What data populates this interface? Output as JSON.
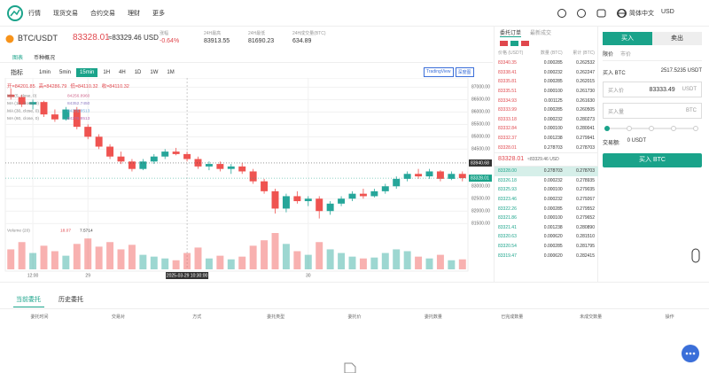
{
  "nav": {
    "items": [
      "行情",
      "现货交易",
      "合约交易",
      "理财",
      "更多"
    ],
    "language": "简体中文",
    "currency": "USD"
  },
  "ticker": {
    "pair": "BTC/USDT",
    "price": "83328.01",
    "price_usd": "≈83329.46 USD",
    "stats": [
      {
        "label": "涨幅",
        "value": "-0.64%"
      },
      {
        "label": "24H最高",
        "value": "83913.55"
      },
      {
        "label": "24H最低",
        "value": "81690.23"
      },
      {
        "label": "24H成交量(BTC)",
        "value": "634.89"
      }
    ]
  },
  "chart_tabs": [
    "图表",
    "币种概况"
  ],
  "indicator_button": "指标",
  "intervals": [
    "1min",
    "5min",
    "15min",
    "1H",
    "4H",
    "1D",
    "1W",
    "1M"
  ],
  "active_interval": 2,
  "view_buttons": [
    "TradingView",
    "深度图"
  ],
  "chart_data": {
    "type": "candlestick",
    "ohlc_legend": [
      "开=84201.85",
      "高=84286.79",
      "低=84110.32",
      "收=84110.32"
    ],
    "ma_legend": [
      {
        "name": "MA (5, close, 0)",
        "value": "84256.8960",
        "color": "#d0698e"
      },
      {
        "name": "MA (10, close, 0)",
        "value": "84352.7450",
        "color": "#8e7cc3"
      },
      {
        "name": "MA (30, close, 0)",
        "value": "84375.8513",
        "color": "#6fa8dc"
      },
      {
        "name": "MA (60, close, 0)",
        "value": "84276.8513",
        "color": "#b46ab4"
      }
    ],
    "volume_legend": [
      "Volume (20)",
      "18.07",
      "7.5714"
    ],
    "categories": [
      null,
      null,
      "12:00",
      null,
      null,
      null,
      null,
      "29",
      null,
      null,
      null,
      null,
      null,
      null,
      null,
      null,
      null,
      null,
      null,
      null,
      null,
      null,
      null,
      null,
      null,
      null,
      null,
      "30",
      null,
      null,
      null,
      null,
      null,
      null,
      null,
      null,
      null,
      null,
      null,
      null,
      null,
      null
    ],
    "candles": [
      [
        86700,
        86950,
        86500,
        86600
      ],
      [
        86600,
        86700,
        86200,
        86300
      ],
      [
        86300,
        86500,
        86100,
        86400
      ],
      [
        86400,
        86450,
        85800,
        85900
      ],
      [
        85900,
        86100,
        85600,
        85700
      ],
      [
        85700,
        86200,
        85650,
        86100
      ],
      [
        86100,
        86200,
        85300,
        85400
      ],
      [
        85400,
        85500,
        84900,
        85000
      ],
      [
        85000,
        85100,
        84500,
        84600
      ],
      [
        84600,
        84700,
        84100,
        84200
      ],
      [
        84200,
        84400,
        83900,
        84000
      ],
      [
        84000,
        84100,
        83600,
        83700
      ],
      [
        83700,
        84100,
        83650,
        84000
      ],
      [
        84000,
        84300,
        83900,
        84200
      ],
      [
        84200,
        84500,
        84100,
        84400
      ],
      [
        84400,
        84550,
        84250,
        84300
      ],
      [
        84300,
        84400,
        84000,
        84100
      ],
      [
        84100,
        84200,
        83700,
        83800
      ],
      [
        83800,
        84000,
        83650,
        83900
      ],
      [
        83900,
        84000,
        83600,
        83700
      ],
      [
        83700,
        83900,
        83500,
        83800
      ],
      [
        83800,
        83950,
        83500,
        83600
      ],
      [
        83600,
        83700,
        83100,
        83200
      ],
      [
        83200,
        83300,
        82700,
        82800
      ],
      [
        82800,
        82900,
        81900,
        82100
      ],
      [
        82100,
        82700,
        81950,
        82600
      ],
      [
        82600,
        82800,
        82300,
        82400
      ],
      [
        82400,
        82600,
        82200,
        82500
      ],
      [
        82500,
        82600,
        81700,
        82000
      ],
      [
        82000,
        82400,
        81850,
        82300
      ],
      [
        82300,
        82600,
        82200,
        82500
      ],
      [
        82500,
        82800,
        82400,
        82700
      ],
      [
        82700,
        82900,
        82500,
        82600
      ],
      [
        82600,
        82900,
        82550,
        82800
      ],
      [
        82800,
        83100,
        82700,
        83000
      ],
      [
        83000,
        83400,
        82900,
        83300
      ],
      [
        83300,
        83600,
        83200,
        83500
      ],
      [
        83500,
        83700,
        83300,
        83400
      ],
      [
        83400,
        83700,
        83300,
        83600
      ],
      [
        83600,
        83650,
        83200,
        83300
      ],
      [
        83300,
        83600,
        83250,
        83500
      ],
      [
        83500,
        83600,
        83200,
        83328.01
      ]
    ],
    "volumes": [
      22,
      30,
      18,
      26,
      20,
      15,
      28,
      34,
      25,
      30,
      22,
      27,
      16,
      14,
      12,
      10,
      18,
      24,
      12,
      15,
      11,
      14,
      26,
      32,
      40,
      28,
      20,
      16,
      30,
      22,
      18,
      14,
      12,
      13,
      18,
      22,
      20,
      14,
      12,
      16,
      10,
      11
    ],
    "ylim": [
      81400,
      87300
    ],
    "yticks": [
      {
        "value": 87000,
        "label": "87000.00"
      },
      {
        "value": 86500,
        "label": "86500.00"
      },
      {
        "value": 86000,
        "label": "86000.00"
      },
      {
        "value": 85500,
        "label": "85500.00"
      },
      {
        "value": 85000,
        "label": "85000.00"
      },
      {
        "value": 84500,
        "label": "84500.00"
      },
      {
        "value": 83000,
        "label": "83000.00"
      },
      {
        "value": 82500,
        "label": "82500.00"
      },
      {
        "value": 82000,
        "label": "82000.00"
      },
      {
        "value": 81500,
        "label": "81500.00"
      }
    ],
    "price_markers": [
      {
        "value": 83940.68,
        "label": "83940.68",
        "color": "#333333"
      },
      {
        "value": 83328.01,
        "label": "83328.01",
        "color": "#1aa38a"
      }
    ],
    "crosshair": {
      "category": 16,
      "label": "2025-03-29 10:30:00"
    },
    "grid": true,
    "up_color": "#26a69a",
    "down_color": "#ef5350"
  },
  "order_book": {
    "tabs": [
      "委托订单",
      "最新成交"
    ],
    "columns": [
      "价格 (USDT)",
      "数量 (BTC)",
      "累计 (BTC)"
    ],
    "asks": [
      [
        "83340.35",
        "0.000285",
        "0.262532"
      ],
      [
        "83338.41",
        "0.000232",
        "0.262247"
      ],
      [
        "83335.81",
        "0.000285",
        "0.262015"
      ],
      [
        "83335.51",
        "0.000100",
        "0.261730"
      ],
      [
        "83334.93",
        "0.001125",
        "0.261630"
      ],
      [
        "83333.99",
        "0.000285",
        "0.260505"
      ],
      [
        "83333.18",
        "0.000232",
        "0.280273"
      ],
      [
        "83332.84",
        "0.000100",
        "0.280041"
      ],
      [
        "83332.37",
        "0.001238",
        "0.279941"
      ],
      [
        "83328.01",
        "0.278703",
        "0.278703"
      ]
    ],
    "mid_price": "83328.01",
    "mid_usd": "≈83329.46 USD",
    "bids": [
      [
        "83328.00",
        "0.278703",
        "0.278703"
      ],
      [
        "83326.18",
        "0.000232",
        "0.278935"
      ],
      [
        "83325.93",
        "0.000100",
        "0.279035"
      ],
      [
        "83323.46",
        "0.000232",
        "0.279267"
      ],
      [
        "83322.26",
        "0.000285",
        "0.279552"
      ],
      [
        "83321.86",
        "0.000100",
        "0.279652"
      ],
      [
        "83321.41",
        "0.001238",
        "0.280890"
      ],
      [
        "83320.63",
        "0.000620",
        "0.281510"
      ],
      [
        "83320.54",
        "0.000285",
        "0.281795"
      ],
      [
        "83319.47",
        "0.000620",
        "0.282415"
      ]
    ]
  },
  "trade": {
    "tabs": [
      "买入",
      "卖出"
    ],
    "order_types": [
      "限价",
      "市价"
    ],
    "available_label": "买入 BTC",
    "available": "2517.5235 USDT",
    "price_label": "买入价",
    "price": "83333.49",
    "price_unit": "USDT",
    "amount_label": "买入量",
    "amount_unit": "BTC",
    "total_label": "交易额:",
    "total": "0 USDT",
    "submit": "买入 BTC"
  },
  "orders": {
    "tabs": [
      "当前委托",
      "历史委托"
    ],
    "columns": [
      "委托时间",
      "交易对",
      "方式",
      "委托类型",
      "委托价",
      "委托数量",
      "已完成数量",
      "未成交数量",
      "操作"
    ]
  }
}
